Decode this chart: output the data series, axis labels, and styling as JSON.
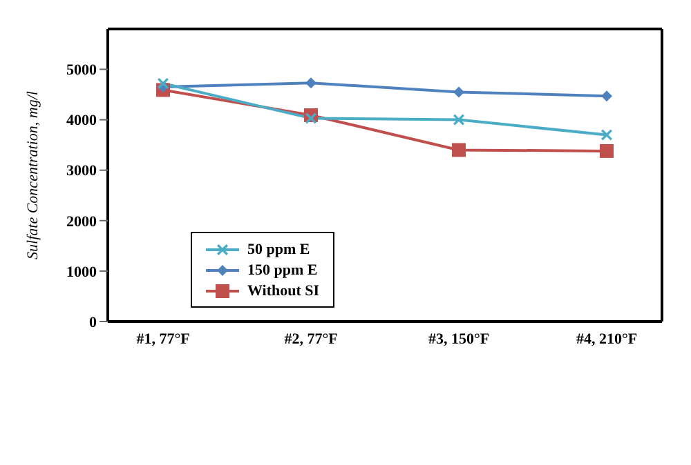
{
  "chart_data": {
    "type": "line",
    "ylabel": "Sulfate Concentration, mg/l",
    "categories": [
      "#1, 77°F",
      "#2, 77°F",
      "#3, 150°F",
      "#4, 210°F"
    ],
    "series": [
      {
        "name": "50 ppm E",
        "color": "#4bacc6",
        "marker": "cross",
        "values": [
          4720,
          4030,
          4000,
          3700
        ]
      },
      {
        "name": "150 ppm E",
        "color": "#4f81bd",
        "marker": "diamond",
        "values": [
          4650,
          4730,
          4550,
          4470
        ]
      },
      {
        "name": "Without SI",
        "color": "#c0504d",
        "marker": "square",
        "values": [
          4590,
          4090,
          3400,
          3380
        ]
      }
    ],
    "ylim": [
      0,
      5800
    ],
    "yticks": [
      0,
      1000,
      2000,
      3000,
      4000,
      5000
    ],
    "legend": "left"
  }
}
